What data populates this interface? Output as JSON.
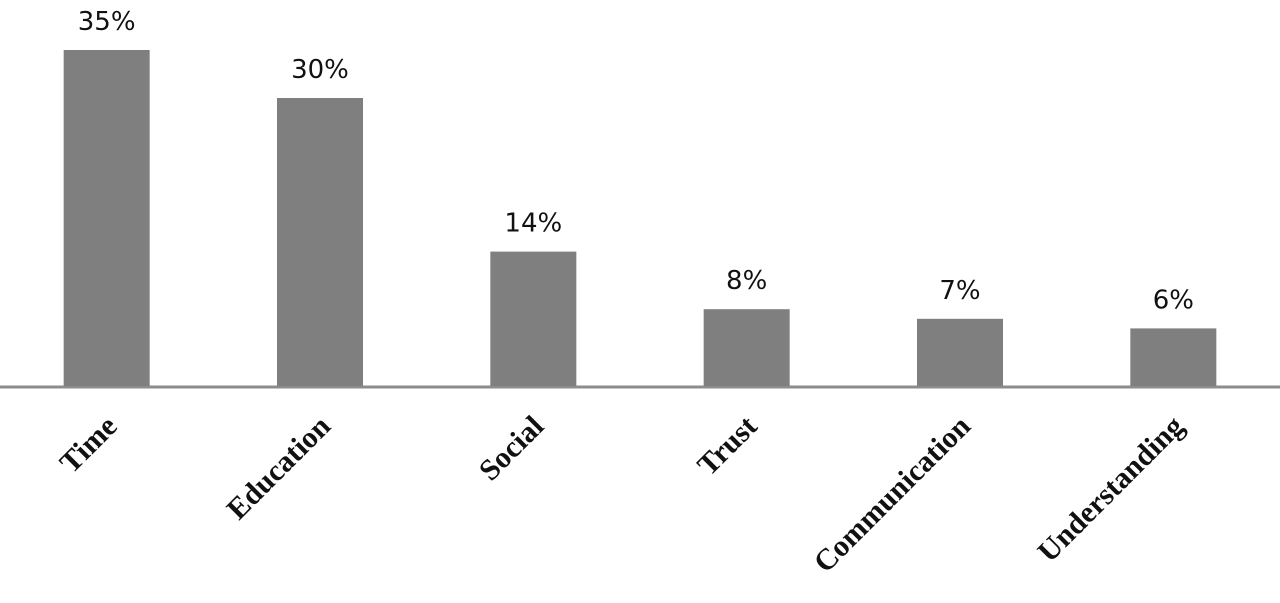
{
  "chart_data": {
    "type": "bar",
    "categories": [
      "Time",
      "Education",
      "Social",
      "Trust",
      "Communication",
      "Understanding"
    ],
    "values": [
      35,
      30,
      14,
      8,
      7,
      6
    ],
    "value_labels": [
      "35%",
      "30%",
      "14%",
      "8%",
      "7%",
      "6%"
    ],
    "color": "#7f7f7f"
  }
}
